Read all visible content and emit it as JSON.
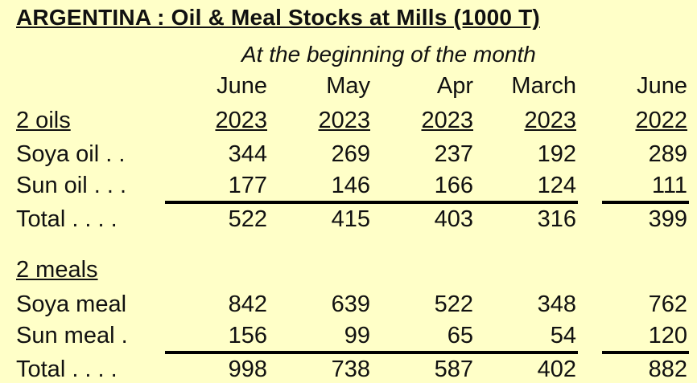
{
  "title": "ARGENTINA : Oil & Meal Stocks at Mills  (1000 T)",
  "subtitle": "At the beginning of the month",
  "columns": [
    {
      "month": "June",
      "year": "2023"
    },
    {
      "month": "May",
      "year": "2023"
    },
    {
      "month": "Apr",
      "year": "2023"
    },
    {
      "month": "March",
      "year": "2023"
    },
    {
      "month": "June",
      "year": "2022"
    }
  ],
  "oils": {
    "heading": "2 oils",
    "rows": [
      {
        "label": "Soya oil . .",
        "values": [
          "344",
          "269",
          "237",
          "192",
          "289"
        ]
      },
      {
        "label": "Sun oil . . .",
        "values": [
          "177",
          "146",
          "166",
          "124",
          "111"
        ]
      }
    ],
    "total": {
      "label": "Total  . . . .",
      "values": [
        "522",
        "415",
        "403",
        "316",
        "399"
      ]
    }
  },
  "meals": {
    "heading": "2 meals",
    "rows": [
      {
        "label": "Soya meal",
        "values": [
          "842",
          "639",
          "522",
          "348",
          "762"
        ]
      },
      {
        "label": "Sun meal .",
        "values": [
          "156",
          "99",
          "65",
          "54",
          "120"
        ]
      }
    ],
    "total": {
      "label": "Total  . . . .",
      "values": [
        "998",
        "738",
        "587",
        "402",
        "882"
      ]
    }
  }
}
